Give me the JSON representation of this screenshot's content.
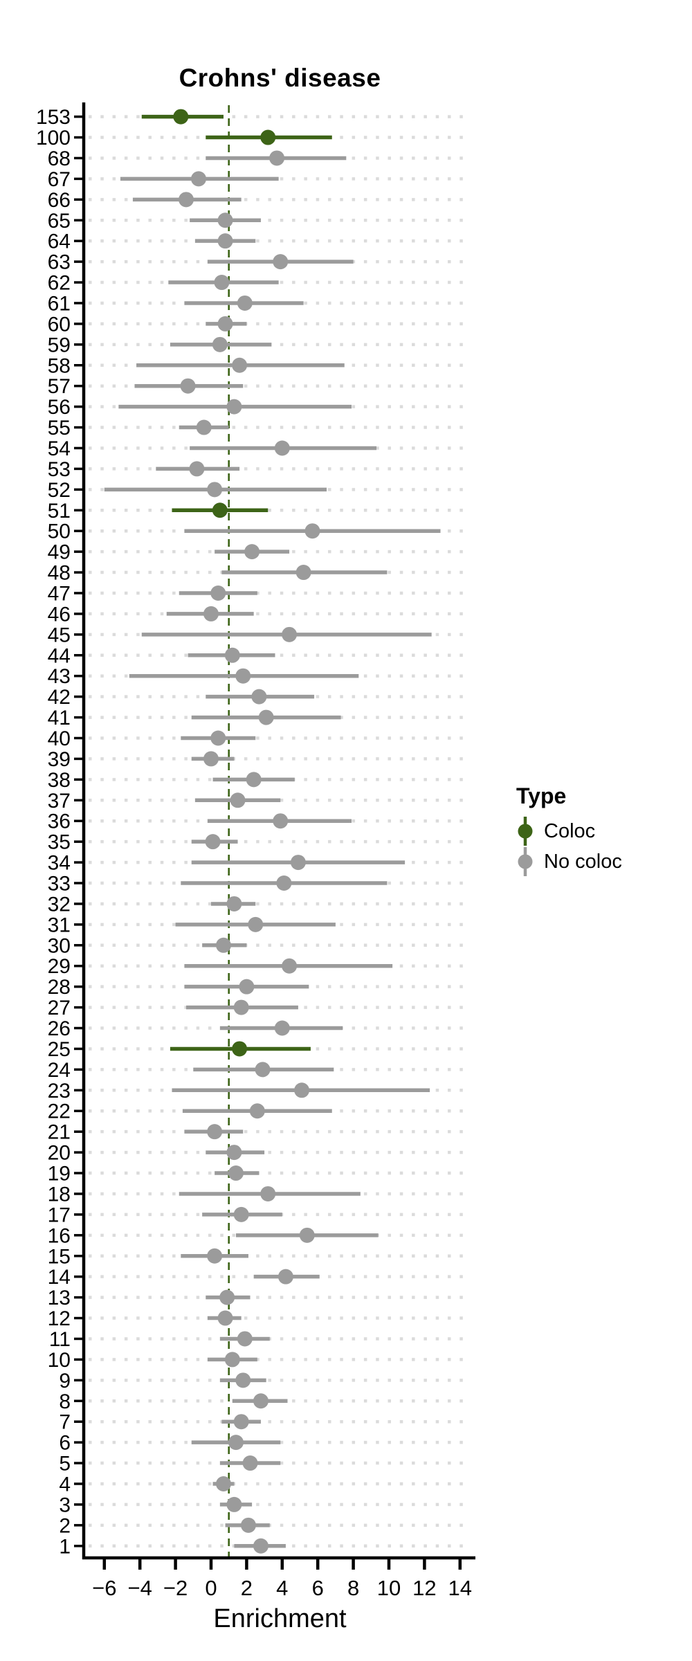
{
  "title": "Crohns' disease",
  "x_axis": {
    "label": "Enrichment",
    "ticks": [
      {
        "label": "−6",
        "value": -6
      },
      {
        "label": "−4",
        "value": -4
      },
      {
        "label": "−2",
        "value": -2
      },
      {
        "label": "0",
        "value": 0
      },
      {
        "label": "2",
        "value": 2
      },
      {
        "label": "4",
        "value": 4
      },
      {
        "label": "6",
        "value": 6
      },
      {
        "label": "8",
        "value": 8
      },
      {
        "label": "10",
        "value": 10
      },
      {
        "label": "12",
        "value": 12
      },
      {
        "label": "14",
        "value": 14
      }
    ]
  },
  "legend": {
    "title": "Type",
    "items": [
      {
        "label": "Coloc",
        "color": "#3D6417"
      },
      {
        "label": "No coloc",
        "color": "#9B9B9B"
      }
    ]
  },
  "colors": {
    "coloc": "#3D6417",
    "no_coloc": "#9B9B9B",
    "grid": "#DBDBDB",
    "axis": "#000000",
    "reference_line": "#3D6417"
  },
  "chart_data": {
    "type": "pointrange-forest",
    "orientation": "horizontal",
    "title": "Crohns' disease",
    "xlabel": "Enrichment",
    "ylabel": "",
    "xlim": [
      -7.1,
      14.9
    ],
    "x_tick_values": [
      -6,
      -4,
      -2,
      0,
      2,
      4,
      6,
      8,
      10,
      12,
      14
    ],
    "grid": "dotted-horizontal",
    "legend_position": "right",
    "reference_line_x": 1,
    "rows": [
      {
        "id": "153",
        "est": -1.7,
        "lo": -3.9,
        "hi": 0.7,
        "type": "Coloc"
      },
      {
        "id": "100",
        "est": 3.2,
        "lo": -0.3,
        "hi": 6.8,
        "type": "Coloc"
      },
      {
        "id": "68",
        "est": 3.7,
        "lo": -0.3,
        "hi": 7.6,
        "type": "No coloc"
      },
      {
        "id": "67",
        "est": -0.7,
        "lo": -5.1,
        "hi": 3.8,
        "type": "No coloc"
      },
      {
        "id": "66",
        "est": -1.4,
        "lo": -4.4,
        "hi": 1.7,
        "type": "No coloc"
      },
      {
        "id": "65",
        "est": 0.8,
        "lo": -1.2,
        "hi": 2.8,
        "type": "No coloc"
      },
      {
        "id": "64",
        "est": 0.8,
        "lo": -0.9,
        "hi": 2.5,
        "type": "No coloc"
      },
      {
        "id": "63",
        "est": 3.9,
        "lo": -0.2,
        "hi": 8.0,
        "type": "No coloc"
      },
      {
        "id": "62",
        "est": 0.6,
        "lo": -2.4,
        "hi": 3.8,
        "type": "No coloc"
      },
      {
        "id": "61",
        "est": 1.9,
        "lo": -1.5,
        "hi": 5.2,
        "type": "No coloc"
      },
      {
        "id": "60",
        "est": 0.8,
        "lo": -0.3,
        "hi": 2.0,
        "type": "No coloc"
      },
      {
        "id": "59",
        "est": 0.5,
        "lo": -2.3,
        "hi": 3.4,
        "type": "No coloc"
      },
      {
        "id": "58",
        "est": 1.6,
        "lo": -4.2,
        "hi": 7.5,
        "type": "No coloc"
      },
      {
        "id": "57",
        "est": -1.3,
        "lo": -4.3,
        "hi": 1.8,
        "type": "No coloc"
      },
      {
        "id": "56",
        "est": 1.3,
        "lo": -5.2,
        "hi": 7.9,
        "type": "No coloc"
      },
      {
        "id": "55",
        "est": -0.4,
        "lo": -1.8,
        "hi": 1.0,
        "type": "No coloc"
      },
      {
        "id": "54",
        "est": 4.0,
        "lo": -1.2,
        "hi": 9.3,
        "type": "No coloc"
      },
      {
        "id": "53",
        "est": -0.8,
        "lo": -3.1,
        "hi": 1.6,
        "type": "No coloc"
      },
      {
        "id": "52",
        "est": 0.2,
        "lo": -6.0,
        "hi": 6.5,
        "type": "No coloc"
      },
      {
        "id": "51",
        "est": 0.5,
        "lo": -2.2,
        "hi": 3.2,
        "type": "Coloc"
      },
      {
        "id": "50",
        "est": 5.7,
        "lo": -1.5,
        "hi": 12.9,
        "type": "No coloc"
      },
      {
        "id": "49",
        "est": 2.3,
        "lo": 0.2,
        "hi": 4.4,
        "type": "No coloc"
      },
      {
        "id": "48",
        "est": 5.2,
        "lo": 0.6,
        "hi": 9.9,
        "type": "No coloc"
      },
      {
        "id": "47",
        "est": 0.4,
        "lo": -1.8,
        "hi": 2.6,
        "type": "No coloc"
      },
      {
        "id": "46",
        "est": 0.0,
        "lo": -2.5,
        "hi": 2.4,
        "type": "No coloc"
      },
      {
        "id": "45",
        "est": 4.4,
        "lo": -3.9,
        "hi": 12.4,
        "type": "No coloc"
      },
      {
        "id": "44",
        "est": 1.2,
        "lo": -1.3,
        "hi": 3.6,
        "type": "No coloc"
      },
      {
        "id": "43",
        "est": 1.8,
        "lo": -4.6,
        "hi": 8.3,
        "type": "No coloc"
      },
      {
        "id": "42",
        "est": 2.7,
        "lo": -0.3,
        "hi": 5.8,
        "type": "No coloc"
      },
      {
        "id": "41",
        "est": 3.1,
        "lo": -1.1,
        "hi": 7.3,
        "type": "No coloc"
      },
      {
        "id": "40",
        "est": 0.4,
        "lo": -1.7,
        "hi": 2.5,
        "type": "No coloc"
      },
      {
        "id": "39",
        "est": 0.0,
        "lo": -1.1,
        "hi": 1.3,
        "type": "No coloc"
      },
      {
        "id": "38",
        "est": 2.4,
        "lo": 0.1,
        "hi": 4.7,
        "type": "No coloc"
      },
      {
        "id": "37",
        "est": 1.5,
        "lo": -0.9,
        "hi": 3.9,
        "type": "No coloc"
      },
      {
        "id": "36",
        "est": 3.9,
        "lo": -0.2,
        "hi": 7.9,
        "type": "No coloc"
      },
      {
        "id": "35",
        "est": 0.1,
        "lo": -1.1,
        "hi": 1.5,
        "type": "No coloc"
      },
      {
        "id": "34",
        "est": 4.9,
        "lo": -1.1,
        "hi": 10.9,
        "type": "No coloc"
      },
      {
        "id": "33",
        "est": 4.1,
        "lo": -1.7,
        "hi": 9.9,
        "type": "No coloc"
      },
      {
        "id": "32",
        "est": 1.3,
        "lo": 0.0,
        "hi": 2.5,
        "type": "No coloc"
      },
      {
        "id": "31",
        "est": 2.5,
        "lo": -2.0,
        "hi": 7.0,
        "type": "No coloc"
      },
      {
        "id": "30",
        "est": 0.7,
        "lo": -0.5,
        "hi": 2.0,
        "type": "No coloc"
      },
      {
        "id": "29",
        "est": 4.4,
        "lo": -1.5,
        "hi": 10.2,
        "type": "No coloc"
      },
      {
        "id": "28",
        "est": 2.0,
        "lo": -1.5,
        "hi": 5.5,
        "type": "No coloc"
      },
      {
        "id": "27",
        "est": 1.7,
        "lo": -1.4,
        "hi": 4.9,
        "type": "No coloc"
      },
      {
        "id": "26",
        "est": 4.0,
        "lo": 0.5,
        "hi": 7.4,
        "type": "No coloc"
      },
      {
        "id": "25",
        "est": 1.6,
        "lo": -2.3,
        "hi": 5.6,
        "type": "Coloc"
      },
      {
        "id": "24",
        "est": 2.9,
        "lo": -1.0,
        "hi": 6.9,
        "type": "No coloc"
      },
      {
        "id": "23",
        "est": 5.1,
        "lo": -2.2,
        "hi": 12.3,
        "type": "No coloc"
      },
      {
        "id": "22",
        "est": 2.6,
        "lo": -1.6,
        "hi": 6.8,
        "type": "No coloc"
      },
      {
        "id": "21",
        "est": 0.2,
        "lo": -1.5,
        "hi": 1.8,
        "type": "No coloc"
      },
      {
        "id": "20",
        "est": 1.3,
        "lo": -0.3,
        "hi": 3.0,
        "type": "No coloc"
      },
      {
        "id": "19",
        "est": 1.4,
        "lo": 0.2,
        "hi": 2.7,
        "type": "No coloc"
      },
      {
        "id": "18",
        "est": 3.2,
        "lo": -1.8,
        "hi": 8.4,
        "type": "No coloc"
      },
      {
        "id": "17",
        "est": 1.7,
        "lo": -0.5,
        "hi": 4.0,
        "type": "No coloc"
      },
      {
        "id": "16",
        "est": 5.4,
        "lo": 1.4,
        "hi": 9.4,
        "type": "No coloc"
      },
      {
        "id": "15",
        "est": 0.2,
        "lo": -1.7,
        "hi": 2.1,
        "type": "No coloc"
      },
      {
        "id": "14",
        "est": 4.2,
        "lo": 2.4,
        "hi": 6.1,
        "type": "No coloc"
      },
      {
        "id": "13",
        "est": 0.9,
        "lo": -0.3,
        "hi": 2.2,
        "type": "No coloc"
      },
      {
        "id": "12",
        "est": 0.8,
        "lo": -0.2,
        "hi": 1.7,
        "type": "No coloc"
      },
      {
        "id": "11",
        "est": 1.9,
        "lo": 0.5,
        "hi": 3.3,
        "type": "No coloc"
      },
      {
        "id": "10",
        "est": 1.2,
        "lo": -0.2,
        "hi": 2.6,
        "type": "No coloc"
      },
      {
        "id": "9",
        "est": 1.8,
        "lo": 0.5,
        "hi": 3.1,
        "type": "No coloc"
      },
      {
        "id": "8",
        "est": 2.8,
        "lo": 1.2,
        "hi": 4.3,
        "type": "No coloc"
      },
      {
        "id": "7",
        "est": 1.7,
        "lo": 0.6,
        "hi": 2.8,
        "type": "No coloc"
      },
      {
        "id": "6",
        "est": 1.4,
        "lo": -1.1,
        "hi": 3.9,
        "type": "No coloc"
      },
      {
        "id": "5",
        "est": 2.2,
        "lo": 0.5,
        "hi": 3.9,
        "type": "No coloc"
      },
      {
        "id": "4",
        "est": 0.7,
        "lo": 0.1,
        "hi": 1.3,
        "type": "No coloc"
      },
      {
        "id": "3",
        "est": 1.3,
        "lo": 0.5,
        "hi": 2.3,
        "type": "No coloc"
      },
      {
        "id": "2",
        "est": 2.1,
        "lo": 0.8,
        "hi": 3.3,
        "type": "No coloc"
      },
      {
        "id": "1",
        "est": 2.8,
        "lo": 1.3,
        "hi": 4.2,
        "type": "No coloc"
      }
    ]
  }
}
